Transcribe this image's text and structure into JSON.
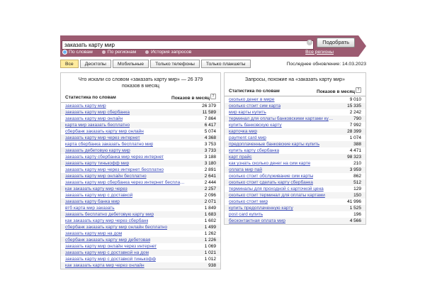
{
  "search": {
    "value": "заказать карту мир",
    "button_label": "Подобрать",
    "clear_glyph": "×"
  },
  "mode_tabs": [
    {
      "label": "По словам",
      "selected": true
    },
    {
      "label": "По регионам",
      "selected": false
    },
    {
      "label": "История запросов",
      "selected": false
    }
  ],
  "regions_link": "Все регионы",
  "device_tabs": [
    {
      "label": "Все",
      "active": true
    },
    {
      "label": "Десктопы",
      "active": false
    },
    {
      "label": "Мобильные",
      "active": false
    },
    {
      "label": "Только телефоны",
      "active": false
    },
    {
      "label": "Только планшеты",
      "active": false
    }
  ],
  "last_update": "Последнее обновление: 14.03.2023",
  "columns": {
    "word": "Статистика по словам",
    "count": "Показов в месяц",
    "help_glyph": "?"
  },
  "left_table": {
    "title": "Что искали со словом «заказать карту мир» — 26 379 показов в месяц",
    "rows": [
      {
        "word": "заказать карту мир",
        "count": "26 379"
      },
      {
        "word": "заказать карту мир сбербанка",
        "count": "11 589"
      },
      {
        "word": "заказать карту мир онлайн",
        "count": "7 864"
      },
      {
        "word": "карта мир заказать бесплатно",
        "count": "6 417"
      },
      {
        "word": "сбербанк заказать карту мир онлайн",
        "count": "5 074"
      },
      {
        "word": "заказать карту мир через интернет",
        "count": "4 368"
      },
      {
        "word": "карта сбербанка заказать бесплатно мир",
        "count": "3 753"
      },
      {
        "word": "заказать дебетовую карту мир",
        "count": "3 733"
      },
      {
        "word": "заказать карту сбербанка мир через интернет",
        "count": "3 188"
      },
      {
        "word": "заказать карту тинькофф мир",
        "count": "3 180"
      },
      {
        "word": "заказать карту мир через интернет бесплатно",
        "count": "2 891"
      },
      {
        "word": "заказать карту мир онлайн бесплатно",
        "count": "2 641"
      },
      {
        "word": "заказать карту мир сбербанка через интернет бесплатно",
        "count": "2 444"
      },
      {
        "word": "как заказать карту мир через",
        "count": "2 257"
      },
      {
        "word": "заказать карту мир с доставкой",
        "count": "2 096"
      },
      {
        "word": "заказать карту банка мир",
        "count": "2 071"
      },
      {
        "word": "втб карта мир заказать",
        "count": "1 849"
      },
      {
        "word": "заказать бесплатно дебетовую карту мир",
        "count": "1 683"
      },
      {
        "word": "как заказать карту мир через сбербанк",
        "count": "1 602"
      },
      {
        "word": "сбербанк заказать карту мир онлайн бесплатно",
        "count": "1 499"
      },
      {
        "word": "заказать карту мир на дом",
        "count": "1 262"
      },
      {
        "word": "сбербанк заказать карту мир дебетовая",
        "count": "1 226"
      },
      {
        "word": "заказать карту мир онлайн через интернет",
        "count": "1 069"
      },
      {
        "word": "заказать карту мир с доставкой на дом",
        "count": "1 021"
      },
      {
        "word": "заказать карту мир с доставкой тинькофф",
        "count": "1 012"
      },
      {
        "word": "как заказать карта мир через онлайн",
        "count": "938"
      }
    ]
  },
  "right_table": {
    "title": "Запросы, похожие на «заказать карту мир»",
    "rows": [
      {
        "word": "сколько денег в мире",
        "count": "9 010"
      },
      {
        "word": "сколько стоит сим карта",
        "count": "15 335"
      },
      {
        "word": "мир карты купить",
        "count": "2 242"
      },
      {
        "word": "терминал для оплаты банковскими картами купить",
        "count": "790"
      },
      {
        "word": "купить банковскую карту",
        "count": "7 992"
      },
      {
        "word": "карточка мир",
        "count": "28 399"
      },
      {
        "word": "payment card мир",
        "count": "1 074"
      },
      {
        "word": "предоплаченные банковские карты купить",
        "count": "388"
      },
      {
        "word": "купить карту сбербанка",
        "count": "4 471"
      },
      {
        "word": "карт прайс",
        "count": "98 323"
      },
      {
        "word": "как узнать сколько денег на сим карте",
        "count": "210"
      },
      {
        "word": "оплата мир пай",
        "count": "3 959"
      },
      {
        "word": "сколько стоит обслуживание сим карты",
        "count": "862"
      },
      {
        "word": "сколько стоит сделать карту сбербанка",
        "count": "512"
      },
      {
        "word": "терминалы для проходной с карточкой цена",
        "count": "129"
      },
      {
        "word": "сколько стоит терминал для оплаты картами",
        "count": "150"
      },
      {
        "word": "сколько стоит мир",
        "count": "41 996"
      },
      {
        "word": "купить предоплаченную карту",
        "count": "1 525"
      },
      {
        "word": "post card купить",
        "count": "196"
      },
      {
        "word": "бесконтактная оплата мир",
        "count": "4 566"
      }
    ]
  },
  "colors": {
    "accent": "#9c5b71",
    "link": "#3c4cba",
    "active_tab_bg": "#ffeb9d"
  }
}
